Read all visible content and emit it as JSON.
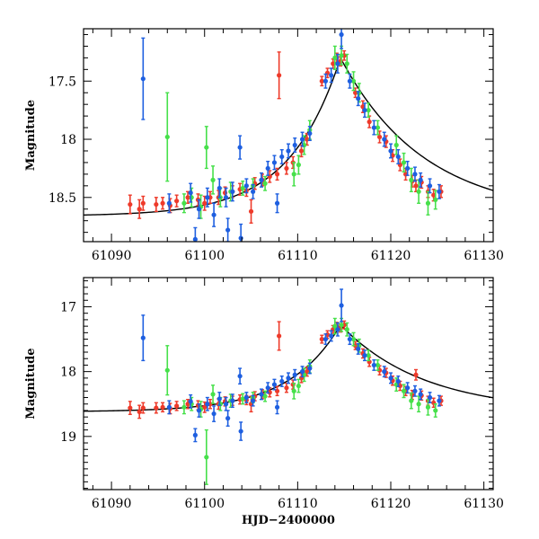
{
  "chart_data": [
    {
      "type": "scatter",
      "title": "",
      "xlabel": "",
      "ylabel": "Magnitude",
      "xlim": [
        61087,
        61131
      ],
      "ylim": [
        18.88,
        17.05
      ],
      "x_ticks": [
        "61090",
        "61100",
        "61110",
        "61120",
        "61130"
      ],
      "y_ticks": [
        "17.5",
        "18",
        "18.5"
      ],
      "model_curve": {
        "name": "model",
        "color": "#000000",
        "baseline_mag": 18.66,
        "peak_mag": 17.3,
        "peak_hjd": 61114.6,
        "rise_timescale_days": 5.5,
        "decay_timescale_days": 9.0
      },
      "series": [
        {
          "name": "red",
          "color": "#ee3a2a",
          "x": [
            61092.0,
            61093.0,
            61093.4,
            61094.8,
            61095.5,
            61096.3,
            61097.0,
            61098.2,
            61099.3,
            61100.0,
            61100.6,
            61101.5,
            61102.2,
            61103.0,
            61103.8,
            61104.5,
            61105.4,
            61106.2,
            61107.0,
            61107.8,
            61108.8,
            61109.5,
            61110.4,
            61111.0,
            61112.6,
            61113.2,
            61113.8,
            61114.2,
            61114.6,
            61115.0,
            61116.2,
            61117.0,
            61117.7,
            61118.8,
            61119.5,
            61120.2,
            61121.0,
            61121.6,
            61122.3,
            61122.7,
            61123.3,
            61124.0,
            61124.6,
            61125.4,
            61108.0,
            61105.0
          ],
          "y": [
            18.56,
            18.6,
            18.55,
            18.56,
            18.55,
            18.57,
            18.53,
            18.5,
            18.52,
            18.55,
            18.5,
            18.5,
            18.46,
            18.45,
            18.43,
            18.44,
            18.38,
            18.35,
            18.32,
            18.3,
            18.25,
            18.2,
            18.1,
            18.0,
            17.5,
            17.43,
            17.35,
            17.3,
            17.33,
            17.28,
            17.6,
            17.72,
            17.85,
            17.98,
            18.02,
            18.14,
            18.22,
            18.3,
            18.36,
            18.4,
            18.37,
            18.45,
            18.48,
            18.45,
            17.45,
            18.62
          ],
          "err": [
            0.08,
            0.08,
            0.06,
            0.06,
            0.05,
            0.06,
            0.05,
            0.05,
            0.05,
            0.06,
            0.05,
            0.06,
            0.05,
            0.05,
            0.05,
            0.05,
            0.05,
            0.05,
            0.05,
            0.05,
            0.05,
            0.05,
            0.05,
            0.05,
            0.04,
            0.04,
            0.04,
            0.04,
            0.04,
            0.04,
            0.04,
            0.05,
            0.05,
            0.05,
            0.05,
            0.05,
            0.05,
            0.05,
            0.05,
            0.05,
            0.05,
            0.05,
            0.05,
            0.05,
            0.2,
            0.1
          ]
        },
        {
          "name": "green",
          "color": "#46e04a",
          "x": [
            61096.0,
            61097.8,
            61098.6,
            61099.6,
            61100.2,
            61100.9,
            61101.7,
            61102.8,
            61104.1,
            61105.2,
            61106.5,
            61109.6,
            61110.1,
            61110.7,
            61111.3,
            61114.0,
            61114.7,
            61115.3,
            61116.0,
            61116.6,
            61117.6,
            61118.6,
            61120.6,
            61121.4,
            61122.2,
            61123.0,
            61124.0,
            61124.8
          ],
          "y": [
            17.98,
            18.55,
            18.5,
            18.58,
            18.07,
            18.35,
            18.5,
            18.45,
            18.42,
            18.4,
            18.38,
            18.3,
            18.22,
            18.05,
            17.92,
            17.3,
            17.28,
            17.35,
            17.5,
            17.6,
            17.75,
            17.9,
            18.05,
            18.2,
            18.35,
            18.45,
            18.55,
            18.52
          ],
          "err": [
            0.38,
            0.08,
            0.08,
            0.1,
            0.18,
            0.12,
            0.08,
            0.08,
            0.06,
            0.06,
            0.06,
            0.1,
            0.08,
            0.08,
            0.08,
            0.1,
            0.08,
            0.08,
            0.08,
            0.08,
            0.06,
            0.06,
            0.08,
            0.08,
            0.1,
            0.1,
            0.1,
            0.08
          ]
        },
        {
          "name": "blue",
          "color": "#1e5fe0",
          "x": [
            61093.4,
            61096.2,
            61098.5,
            61099.4,
            61100.3,
            61101.0,
            61101.6,
            61102.3,
            61103.0,
            61103.8,
            61104.5,
            61105.2,
            61106.1,
            61106.8,
            61107.5,
            61108.3,
            61109.0,
            61109.7,
            61110.5,
            61111.3,
            61113.0,
            61113.6,
            61114.3,
            61114.7,
            61115.6,
            61116.5,
            61117.2,
            61118.2,
            61119.3,
            61120.0,
            61120.8,
            61121.8,
            61122.6,
            61123.2,
            61124.2,
            61125.2,
            61107.8,
            61102.5,
            61103.9,
            61099.0
          ],
          "y": [
            17.48,
            18.55,
            18.46,
            18.6,
            18.5,
            18.65,
            18.42,
            18.5,
            18.45,
            18.07,
            18.4,
            18.45,
            18.35,
            18.25,
            18.2,
            18.15,
            18.1,
            18.05,
            18.0,
            17.95,
            17.5,
            17.45,
            17.35,
            17.1,
            17.5,
            17.65,
            17.75,
            17.9,
            18.0,
            18.1,
            18.15,
            18.25,
            18.3,
            18.35,
            18.4,
            18.45,
            18.55,
            18.78,
            18.85,
            18.86
          ],
          "err": [
            0.35,
            0.08,
            0.08,
            0.08,
            0.08,
            0.1,
            0.08,
            0.08,
            0.08,
            0.1,
            0.06,
            0.06,
            0.06,
            0.06,
            0.06,
            0.06,
            0.06,
            0.06,
            0.06,
            0.06,
            0.06,
            0.06,
            0.08,
            0.12,
            0.06,
            0.06,
            0.06,
            0.06,
            0.06,
            0.06,
            0.06,
            0.06,
            0.06,
            0.06,
            0.06,
            0.06,
            0.08,
            0.1,
            0.12,
            0.1
          ]
        }
      ]
    },
    {
      "type": "scatter",
      "title": "",
      "xlabel": "HJD−2400000",
      "ylabel": "Magnitude",
      "xlim": [
        61087,
        61131
      ],
      "ylim": [
        19.82,
        16.55
      ],
      "x_ticks": [
        "61090",
        "61100",
        "61110",
        "61120",
        "61130"
      ],
      "y_ticks": [
        "17",
        "18",
        "19"
      ],
      "model_curve": {
        "name": "model",
        "color": "#000000",
        "baseline_mag": 18.62,
        "peak_mag": 17.28,
        "peak_hjd": 61114.6,
        "rise_timescale_days": 5.5,
        "decay_timescale_days": 9.0
      },
      "series": [
        {
          "name": "red",
          "color": "#ee3a2a",
          "x": [
            61092.0,
            61093.0,
            61093.4,
            61094.8,
            61095.5,
            61096.3,
            61097.0,
            61098.2,
            61099.3,
            61100.0,
            61100.6,
            61101.5,
            61102.2,
            61103.0,
            61103.8,
            61104.5,
            61105.4,
            61106.2,
            61107.0,
            61107.8,
            61108.8,
            61109.5,
            61110.4,
            61111.0,
            61112.6,
            61113.2,
            61113.8,
            61114.2,
            61114.6,
            61115.0,
            61116.2,
            61117.0,
            61117.7,
            61118.8,
            61119.5,
            61120.2,
            61121.0,
            61121.6,
            61122.3,
            61122.7,
            61123.3,
            61124.0,
            61124.6,
            61125.4,
            61108.0,
            61105.0
          ],
          "y": [
            18.56,
            18.62,
            18.56,
            18.56,
            18.55,
            18.57,
            18.53,
            18.5,
            18.52,
            18.55,
            18.5,
            18.5,
            18.46,
            18.45,
            18.43,
            18.44,
            18.38,
            18.35,
            18.32,
            18.3,
            18.25,
            18.2,
            18.1,
            18.0,
            17.5,
            17.43,
            17.35,
            17.3,
            17.33,
            17.28,
            17.6,
            17.72,
            17.85,
            17.98,
            18.02,
            18.14,
            18.22,
            18.3,
            18.36,
            18.05,
            18.37,
            18.45,
            18.48,
            18.45,
            17.45,
            18.5
          ],
          "err": [
            0.1,
            0.1,
            0.08,
            0.08,
            0.07,
            0.08,
            0.07,
            0.07,
            0.07,
            0.08,
            0.07,
            0.08,
            0.07,
            0.07,
            0.07,
            0.07,
            0.07,
            0.07,
            0.07,
            0.07,
            0.07,
            0.07,
            0.07,
            0.07,
            0.06,
            0.06,
            0.06,
            0.06,
            0.06,
            0.06,
            0.06,
            0.07,
            0.07,
            0.07,
            0.07,
            0.07,
            0.07,
            0.07,
            0.07,
            0.08,
            0.07,
            0.07,
            0.07,
            0.07,
            0.22,
            0.12
          ]
        },
        {
          "name": "green",
          "color": "#46e04a",
          "x": [
            61096.0,
            61097.8,
            61098.6,
            61099.6,
            61100.2,
            61100.9,
            61101.7,
            61102.8,
            61104.1,
            61105.2,
            61106.5,
            61109.6,
            61110.1,
            61110.7,
            61111.3,
            61114.0,
            61114.7,
            61115.3,
            61116.0,
            61116.6,
            61117.6,
            61118.6,
            61120.6,
            61121.4,
            61122.2,
            61123.0,
            61124.0,
            61124.8
          ],
          "y": [
            17.98,
            18.55,
            18.5,
            18.58,
            19.32,
            18.35,
            18.5,
            18.45,
            18.42,
            18.4,
            18.38,
            18.3,
            18.22,
            18.05,
            17.92,
            17.3,
            17.28,
            17.35,
            17.5,
            17.6,
            17.75,
            17.9,
            18.2,
            18.3,
            18.45,
            18.5,
            18.55,
            18.6
          ],
          "err": [
            0.38,
            0.1,
            0.1,
            0.12,
            0.42,
            0.14,
            0.1,
            0.1,
            0.08,
            0.08,
            0.08,
            0.12,
            0.1,
            0.1,
            0.1,
            0.12,
            0.1,
            0.1,
            0.1,
            0.1,
            0.08,
            0.08,
            0.1,
            0.1,
            0.12,
            0.12,
            0.12,
            0.1
          ]
        },
        {
          "name": "blue",
          "color": "#1e5fe0",
          "x": [
            61093.4,
            61096.2,
            61098.5,
            61099.0,
            61099.4,
            61100.3,
            61101.0,
            61101.6,
            61102.3,
            61103.0,
            61103.8,
            61104.5,
            61105.2,
            61106.1,
            61106.8,
            61107.5,
            61108.3,
            61109.0,
            61109.7,
            61110.5,
            61111.3,
            61113.0,
            61113.6,
            61114.3,
            61114.7,
            61115.6,
            61116.5,
            61117.2,
            61118.2,
            61119.3,
            61120.0,
            61120.8,
            61121.8,
            61122.6,
            61123.2,
            61124.2,
            61125.2,
            61107.8,
            61102.5,
            61103.9
          ],
          "y": [
            17.48,
            18.55,
            18.46,
            18.98,
            18.6,
            18.5,
            18.65,
            18.42,
            18.5,
            18.45,
            18.07,
            18.4,
            18.45,
            18.35,
            18.25,
            18.2,
            18.15,
            18.1,
            18.05,
            18.0,
            17.95,
            17.5,
            17.45,
            17.35,
            16.98,
            17.5,
            17.65,
            17.75,
            17.9,
            18.0,
            18.1,
            18.15,
            18.25,
            18.3,
            18.35,
            18.4,
            18.45,
            18.55,
            18.72,
            18.92
          ],
          "err": [
            0.35,
            0.1,
            0.1,
            0.1,
            0.1,
            0.1,
            0.12,
            0.1,
            0.1,
            0.1,
            0.12,
            0.08,
            0.08,
            0.08,
            0.08,
            0.08,
            0.08,
            0.08,
            0.08,
            0.08,
            0.08,
            0.08,
            0.08,
            0.1,
            0.25,
            0.08,
            0.08,
            0.08,
            0.08,
            0.08,
            0.08,
            0.08,
            0.08,
            0.08,
            0.08,
            0.08,
            0.08,
            0.1,
            0.12,
            0.14
          ]
        }
      ]
    }
  ]
}
